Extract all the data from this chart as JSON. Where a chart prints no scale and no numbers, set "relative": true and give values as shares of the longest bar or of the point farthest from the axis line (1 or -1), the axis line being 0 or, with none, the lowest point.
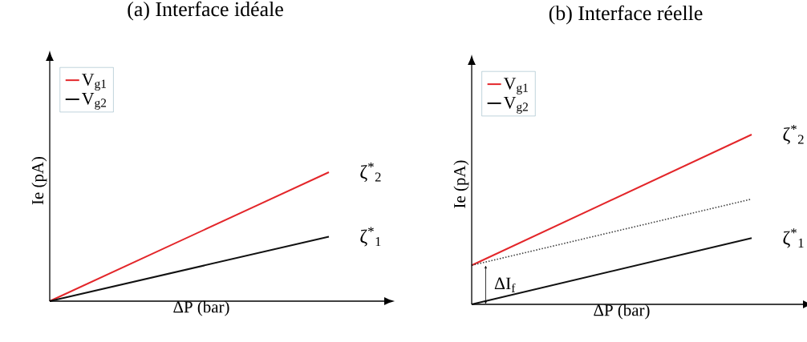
{
  "chart_data": [
    {
      "type": "line",
      "title": "(a)  Interface idéale",
      "xlabel": "ΔP (bar)",
      "ylabel": "Ie (pA)",
      "categories": [
        null,
        null
      ],
      "relative": true,
      "legend": "top left",
      "series": [
        {
          "name": "V$_{g1}$",
          "color": "#e3262a",
          "values": [
            0,
            1
          ]
        },
        {
          "name": "V$_{g2}$",
          "color": "#111111",
          "values": [
            0,
            0.5
          ]
        }
      ],
      "annotations": [
        "ζ$^{*}$$_{2}$",
        "ζ$^{*}$$_{1}$"
      ]
    },
    {
      "type": "line",
      "title": "(b)   Interface réelle",
      "xlabel": "ΔP (bar)",
      "ylabel": "Ie (pA)",
      "categories": [
        null,
        null
      ],
      "relative": true,
      "legend": "top left",
      "series": [
        {
          "name": "V$_{g1}$",
          "color": "#e3262a",
          "values": [
            0.23,
            1
          ]
        },
        {
          "name": "V$_{g2}$",
          "color": "#111111",
          "values": [
            0,
            0.39
          ]
        },
        {
          "color": "#444444",
          "values": [
            0.23,
            0.62
          ],
          "line_style": "dotted"
        }
      ],
      "annotations": [
        "ζ$^{*}$$_{2}$",
        "ζ$^{*}$$_{1}$",
        "ΔI$_{f}$"
      ]
    }
  ]
}
